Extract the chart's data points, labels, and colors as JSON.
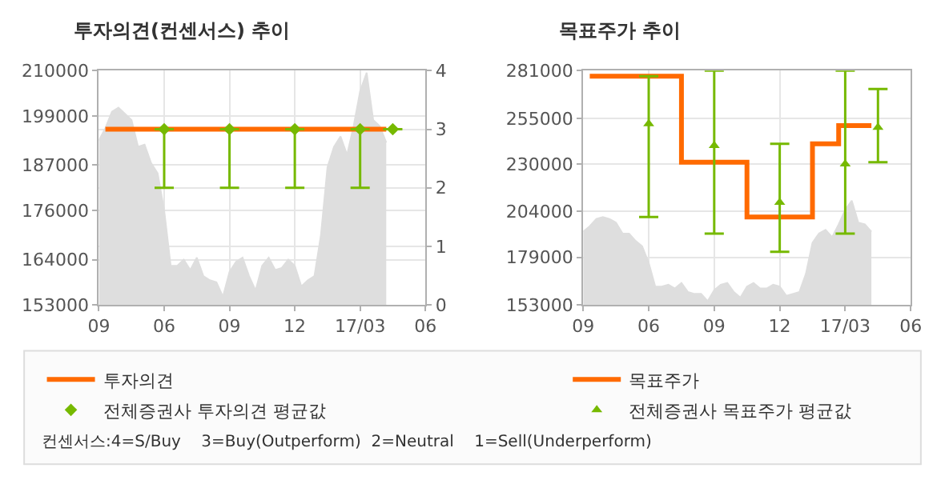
{
  "chart_data": [
    {
      "type": "line",
      "title": "투자의견(컨센서스) 추이",
      "categories": [
        "09",
        null,
        null,
        null,
        null,
        null,
        null,
        null,
        null,
        null,
        "06",
        null,
        null,
        null,
        null,
        null,
        null,
        null,
        null,
        null,
        "09",
        null,
        null,
        null,
        null,
        null,
        null,
        null,
        null,
        null,
        "12",
        null,
        null,
        null,
        null,
        null,
        null,
        null,
        null,
        null,
        "17/03",
        null,
        null,
        null,
        null,
        null,
        null,
        null,
        null,
        null,
        "06"
      ],
      "ylim": [
        153000,
        210000
      ],
      "yticks": [
        153000,
        164000,
        176000,
        187000,
        199000,
        210000
      ],
      "y2lim": [
        0,
        4
      ],
      "y2ticks": [
        0,
        1,
        2,
        3,
        4
      ],
      "grid": true,
      "legend": "bottom left",
      "annotations": [
        "컨센서스:4=S/Buy    3=Buy(Outperform)  2=Neutral    1=Sell(Underperform)"
      ],
      "series": [
        {
          "type": "area",
          "color": "#dedede",
          "values": [
            193000,
            196000,
            200000,
            201000,
            199500,
            198000,
            191500,
            192000,
            187500,
            185000,
            176000,
            162500,
            162500,
            164000,
            161500,
            164500,
            160000,
            159000,
            158500,
            155000,
            161000,
            163500,
            164500,
            160000,
            156500,
            162500,
            164500,
            161500,
            162000,
            164000,
            162500,
            157500,
            159000,
            160000,
            170000,
            186500,
            191500,
            194000,
            189500,
            196500,
            205000,
            209500,
            198000,
            196500,
            192500,
            null,
            null,
            null,
            null,
            null,
            null
          ]
        },
        {
          "name": "투자의견",
          "color": "#ff6a00",
          "axis": "y2",
          "marker": "none",
          "values": [
            null,
            3,
            3,
            3,
            3,
            3,
            3,
            3,
            3,
            3,
            3,
            3,
            3,
            3,
            3,
            3,
            3,
            3,
            3,
            3,
            3,
            3,
            3,
            3,
            3,
            3,
            3,
            3,
            3,
            3,
            3,
            3,
            3,
            3,
            3,
            3,
            3,
            3,
            3,
            3,
            3,
            3,
            3,
            3,
            3,
            null,
            null,
            null,
            null,
            null,
            null
          ]
        },
        {
          "type": "scatter",
          "name": "전체증권사 투자의견 평균값",
          "color": "#76b900",
          "axis": "y2",
          "marker": "diamond",
          "values": [
            null,
            null,
            null,
            null,
            null,
            null,
            null,
            null,
            null,
            null,
            3,
            null,
            null,
            null,
            null,
            null,
            null,
            null,
            null,
            null,
            3,
            null,
            null,
            null,
            null,
            null,
            null,
            null,
            null,
            null,
            3,
            null,
            null,
            null,
            null,
            null,
            null,
            null,
            null,
            null,
            3,
            null,
            null,
            null,
            null,
            3,
            null,
            null,
            null,
            null,
            null
          ],
          "errors": [
            null,
            null,
            null,
            null,
            null,
            null,
            null,
            null,
            null,
            null,
            [
              2,
              3
            ],
            null,
            null,
            null,
            null,
            null,
            null,
            null,
            null,
            null,
            [
              2,
              3
            ],
            null,
            null,
            null,
            null,
            null,
            null,
            null,
            null,
            null,
            [
              2,
              3
            ],
            null,
            null,
            null,
            null,
            null,
            null,
            null,
            null,
            null,
            [
              2,
              3
            ],
            null,
            null,
            null,
            null,
            null,
            null,
            null,
            null,
            null,
            null
          ]
        }
      ]
    },
    {
      "type": "step",
      "title": "목표주가 추이",
      "categories": [
        "09",
        null,
        null,
        null,
        null,
        null,
        null,
        null,
        null,
        null,
        "06",
        null,
        null,
        null,
        null,
        null,
        null,
        null,
        null,
        null,
        "09",
        null,
        null,
        null,
        null,
        null,
        null,
        null,
        null,
        null,
        "12",
        null,
        null,
        null,
        null,
        null,
        null,
        null,
        null,
        null,
        "17/03",
        null,
        null,
        null,
        null,
        null,
        null,
        null,
        null,
        null,
        "06"
      ],
      "ylim": [
        153000,
        281000
      ],
      "yticks": [
        153000,
        179000,
        204000,
        230000,
        255000,
        281000
      ],
      "grid": true,
      "legend": "bottom",
      "series": [
        {
          "type": "area",
          "color": "#dedede",
          "values": [
            193000,
            196000,
            200000,
            201000,
            200000,
            198000,
            192000,
            192000,
            188000,
            185000,
            176000,
            163000,
            163000,
            164000,
            162000,
            165000,
            160000,
            159000,
            159000,
            155000,
            161000,
            164000,
            165000,
            160000,
            157000,
            163000,
            165000,
            162000,
            162000,
            164000,
            163000,
            158000,
            159000,
            160000,
            170000,
            187000,
            192000,
            194000,
            190000,
            197000,
            205000,
            210000,
            198000,
            197000,
            193000,
            null,
            null,
            null,
            null,
            null,
            null
          ]
        },
        {
          "name": "목표주가",
          "color": "#ff6a00",
          "marker": "none",
          "values": [
            null,
            278000,
            278000,
            278000,
            278000,
            278000,
            278000,
            278000,
            278000,
            278000,
            278000,
            278000,
            278000,
            278000,
            278000,
            231000,
            231000,
            231000,
            231000,
            231000,
            231000,
            231000,
            231000,
            231000,
            231000,
            201000,
            201000,
            201000,
            201000,
            201000,
            201000,
            201000,
            201000,
            201000,
            201000,
            241000,
            241000,
            241000,
            241000,
            251000,
            251000,
            251000,
            251000,
            251000,
            251000,
            null,
            null,
            null,
            null,
            null,
            null
          ]
        },
        {
          "type": "scatter",
          "name": "전체증권사 목표주가 평균값",
          "color": "#76b900",
          "marker": "triangle",
          "values": [
            null,
            null,
            null,
            null,
            null,
            null,
            null,
            null,
            null,
            null,
            252000,
            null,
            null,
            null,
            null,
            null,
            null,
            null,
            null,
            null,
            240000,
            null,
            null,
            null,
            null,
            null,
            null,
            null,
            null,
            null,
            209000,
            null,
            null,
            null,
            null,
            null,
            null,
            null,
            null,
            null,
            230000,
            null,
            null,
            null,
            null,
            250000,
            null,
            null,
            null,
            null,
            null
          ],
          "errors": [
            null,
            null,
            null,
            null,
            null,
            null,
            null,
            null,
            null,
            null,
            [
              201000,
              278000
            ],
            null,
            null,
            null,
            null,
            null,
            null,
            null,
            null,
            null,
            [
              192000,
              281000
            ],
            null,
            null,
            null,
            null,
            null,
            null,
            null,
            null,
            null,
            [
              182000,
              241000
            ],
            null,
            null,
            null,
            null,
            null,
            null,
            null,
            null,
            null,
            [
              192000,
              281000
            ],
            null,
            null,
            null,
            null,
            [
              231000,
              271000
            ],
            null,
            null,
            null,
            null,
            null
          ]
        }
      ]
    }
  ]
}
